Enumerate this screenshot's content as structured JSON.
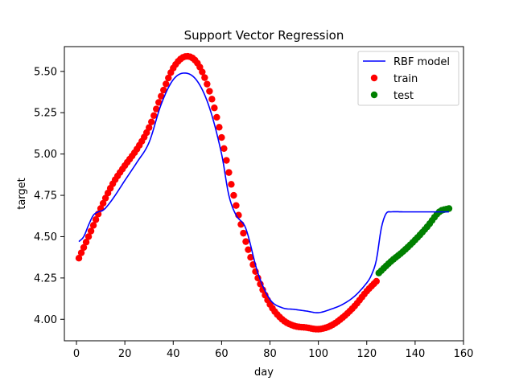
{
  "chart_data": {
    "type": "scatter",
    "title": "Support Vector Regression",
    "xlabel": "day",
    "ylabel": "target",
    "xlim": [
      -5,
      160
    ],
    "ylim": [
      3.87,
      5.65
    ],
    "xticks": [
      0,
      20,
      40,
      60,
      80,
      100,
      120,
      140,
      160
    ],
    "yticks": [
      4.0,
      4.25,
      4.5,
      4.75,
      5.0,
      5.25,
      5.5
    ],
    "xtick_labels": [
      "0",
      "20",
      "40",
      "60",
      "80",
      "100",
      "120",
      "140",
      "160"
    ],
    "ytick_labels": [
      "4.00",
      "4.25",
      "4.50",
      "4.75",
      "5.00",
      "5.25",
      "5.50"
    ],
    "grid": false,
    "legend_position": "top-right",
    "legend": [
      "RBF model",
      "train",
      "test"
    ],
    "colors": {
      "model": "#0000ff",
      "train": "#ff0000",
      "test": "#008000"
    },
    "series": [
      {
        "name": "RBF model",
        "kind": "line",
        "x": [
          1,
          3,
          5,
          7,
          9,
          11,
          13,
          16,
          20,
          25,
          30,
          35,
          40,
          45,
          50,
          55,
          60,
          63,
          66,
          70,
          75,
          80,
          85,
          90,
          95,
          100,
          105,
          110,
          115,
          120,
          122,
          124,
          126,
          128,
          130,
          135,
          140,
          145,
          150,
          154
        ],
        "y": [
          4.47,
          4.5,
          4.57,
          4.63,
          4.65,
          4.66,
          4.69,
          4.75,
          4.84,
          4.95,
          5.07,
          5.3,
          5.45,
          5.49,
          5.44,
          5.28,
          5.0,
          4.75,
          4.63,
          4.55,
          4.28,
          4.12,
          4.07,
          4.06,
          4.05,
          4.04,
          4.06,
          4.09,
          4.14,
          4.22,
          4.27,
          4.36,
          4.55,
          4.64,
          4.65,
          4.65,
          4.65,
          4.65,
          4.65,
          4.65
        ]
      },
      {
        "name": "train",
        "kind": "scatter",
        "x": [
          1,
          5,
          10,
          15,
          20,
          25,
          30,
          35,
          40,
          45,
          50,
          55,
          60,
          65,
          70,
          75,
          80,
          85,
          90,
          95,
          100,
          105,
          110,
          115,
          120,
          124
        ],
        "y": [
          4.37,
          4.5,
          4.67,
          4.82,
          4.93,
          5.03,
          5.16,
          5.35,
          5.52,
          5.59,
          5.55,
          5.38,
          5.1,
          4.75,
          4.47,
          4.25,
          4.09,
          4.0,
          3.96,
          3.95,
          3.94,
          3.96,
          4.01,
          4.08,
          4.17,
          4.23
        ]
      },
      {
        "name": "test",
        "kind": "scatter",
        "x": [
          125,
          130,
          135,
          140,
          145,
          150,
          154
        ],
        "y": [
          4.28,
          4.35,
          4.41,
          4.48,
          4.56,
          4.65,
          4.67
        ]
      }
    ]
  }
}
